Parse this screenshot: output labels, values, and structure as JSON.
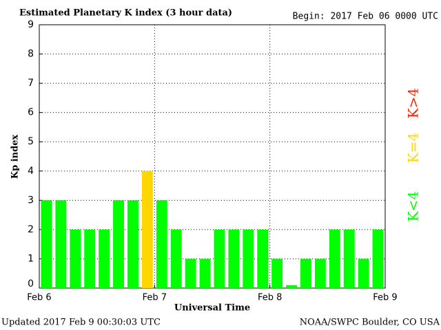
{
  "chart_data": {
    "type": "bar",
    "title": "Estimated Planetary K index (3 hour data)",
    "subtitle": "Begin:  2017 Feb 06 0000 UTC",
    "y_label": "Kp index",
    "x_label": "Universal Time",
    "footer_left": "Updated 2017 Feb  9 00:30:03 UTC",
    "footer_right": "NOAA/SWPC Boulder, CO USA",
    "x": [
      0,
      3,
      6,
      9,
      12,
      15,
      18,
      21,
      24,
      27,
      30,
      33,
      36,
      39,
      42,
      45,
      48,
      51,
      54,
      57,
      60,
      63,
      66,
      69
    ],
    "bar_width": 3,
    "values": [
      3,
      3,
      2,
      2,
      2,
      3,
      3,
      4,
      3,
      2,
      1,
      1,
      2,
      2,
      2,
      2,
      1,
      0.1,
      1,
      1,
      2,
      2,
      1,
      2
    ],
    "colors": [
      "#00ff00",
      "#00ff00",
      "#00ff00",
      "#00ff00",
      "#00ff00",
      "#00ff00",
      "#00ff00",
      "#ffd700",
      "#00ff00",
      "#00ff00",
      "#00ff00",
      "#00ff00",
      "#00ff00",
      "#00ff00",
      "#00ff00",
      "#00ff00",
      "#00ff00",
      "#00ff00",
      "#00ff00",
      "#00ff00",
      "#00ff00",
      "#00ff00",
      "#00ff00",
      "#00ff00"
    ],
    "xlim": [
      0,
      72
    ],
    "xticks": [
      {
        "value": 0,
        "label": "Feb 6"
      },
      {
        "value": 24,
        "label": "Feb 7"
      },
      {
        "value": 48,
        "label": "Feb 8"
      },
      {
        "value": 72,
        "label": "Feb 9"
      }
    ],
    "ylim": [
      0,
      9
    ],
    "yticks": [
      0,
      1,
      2,
      3,
      4,
      5,
      6,
      7,
      8,
      9
    ],
    "grid": true,
    "legend": [
      {
        "label": "K<4",
        "color": "#00ff00"
      },
      {
        "label": "K=4",
        "color": "#ffd700"
      },
      {
        "label": "K>4",
        "color": "#ff2000"
      }
    ]
  }
}
